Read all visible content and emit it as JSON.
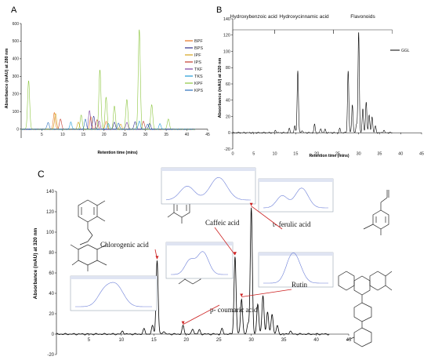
{
  "panels": {
    "a": "A",
    "b": "B",
    "c": "C"
  },
  "chart_data": [
    {
      "panel": "A",
      "type": "line",
      "xlabel": "Retention time (mins)",
      "ylabel": "Absorbance (mAU) at 280 nm",
      "xlim": [
        0,
        45
      ],
      "ylim": [
        -50,
        600
      ],
      "x_ticks": [
        5,
        10,
        15,
        20,
        25,
        30,
        35,
        40,
        45
      ],
      "y_ticks": [
        0,
        100,
        200,
        300,
        400,
        500,
        600
      ],
      "legend_position": "right",
      "series": [
        {
          "name": "BPF",
          "color": "#e6731e",
          "peaks": [
            [
              8.0,
              95
            ],
            [
              16.8,
              70
            ],
            [
              20.5,
              45
            ]
          ]
        },
        {
          "name": "BPS",
          "color": "#2e2e8a",
          "peaks": [
            [
              17.5,
              75
            ],
            [
              22.5,
              40
            ],
            [
              27.5,
              45
            ],
            [
              31.0,
              35
            ]
          ]
        },
        {
          "name": "IPF",
          "color": "#d4a21a",
          "peaks": [
            [
              8.3,
              90
            ],
            [
              13.8,
              40
            ],
            [
              24.0,
              30
            ]
          ]
        },
        {
          "name": "IPS",
          "color": "#c0392b",
          "peaks": [
            [
              9.5,
              60
            ],
            [
              18.3,
              55
            ],
            [
              29.5,
              45
            ]
          ]
        },
        {
          "name": "TKF",
          "color": "#7b3fa0",
          "peaks": [
            [
              16.5,
              105
            ],
            [
              18.8,
              45
            ],
            [
              25.5,
              40
            ]
          ]
        },
        {
          "name": "TKS",
          "color": "#1f9ad6",
          "peaks": [
            [
              12.0,
              40
            ],
            [
              21.0,
              35
            ],
            [
              28.5,
              45
            ],
            [
              33.5,
              30
            ]
          ]
        },
        {
          "name": "KPF",
          "color": "#8cc63f",
          "peaks": [
            [
              1.8,
              275
            ],
            [
              14.5,
              80
            ],
            [
              19.0,
              335
            ],
            [
              20.5,
              180
            ],
            [
              22.5,
              130
            ],
            [
              25.5,
              170
            ],
            [
              28.5,
              565
            ],
            [
              31.5,
              140
            ],
            [
              35.5,
              60
            ]
          ]
        },
        {
          "name": "KPS",
          "color": "#2c6fbb",
          "peaks": [
            [
              6.5,
              40
            ],
            [
              15.5,
              55
            ],
            [
              23.5,
              35
            ],
            [
              30.5,
              30
            ]
          ]
        }
      ]
    },
    {
      "panel": "B",
      "type": "line",
      "xlabel": "Retention time (mins)",
      "ylabel": "Absorbance (mAU) at 320 nm",
      "xlim": [
        0,
        45
      ],
      "ylim": [
        -20,
        140
      ],
      "x_ticks": [
        0,
        5,
        10,
        15,
        20,
        25,
        30,
        35,
        40,
        45
      ],
      "y_ticks": [
        -20,
        0,
        20,
        40,
        60,
        80,
        100,
        120,
        140
      ],
      "legend_position": "right",
      "regions": [
        {
          "label": "Hydroxybenzoic acid",
          "start": 0,
          "end": 10
        },
        {
          "label": "Hydroxycinnamic acid",
          "start": 10,
          "end": 24
        },
        {
          "label": "Flavonoids",
          "start": 24,
          "end": 38
        }
      ],
      "series": [
        {
          "name": "GGL",
          "color": "#000000",
          "peaks": [
            [
              10.2,
              3
            ],
            [
              13.5,
              5
            ],
            [
              14.8,
              8
            ],
            [
              15.5,
              76
            ],
            [
              16.5,
              3
            ],
            [
              19.5,
              10
            ],
            [
              21.0,
              5
            ],
            [
              22.0,
              4
            ],
            [
              25.5,
              5
            ],
            [
              27.5,
              76
            ],
            [
              28.5,
              35
            ],
            [
              29.5,
              10
            ],
            [
              30.0,
              124
            ],
            [
              31.0,
              30
            ],
            [
              31.8,
              38
            ],
            [
              32.5,
              22
            ],
            [
              33.2,
              20
            ],
            [
              34.0,
              8
            ],
            [
              36.0,
              3
            ]
          ]
        }
      ]
    },
    {
      "panel": "C",
      "type": "line",
      "ylabel": "Absorbance (mAU) at 320 nm",
      "xlim": [
        0,
        45
      ],
      "ylim": [
        -20,
        140
      ],
      "x_ticks": [
        5,
        10,
        15,
        20,
        25,
        30,
        35,
        40,
        45
      ],
      "y_ticks": [
        -20,
        0,
        20,
        40,
        60,
        80,
        100,
        120,
        140
      ],
      "series": [
        {
          "color": "#000000",
          "peaks": [
            [
              10.2,
              3
            ],
            [
              13.5,
              5
            ],
            [
              14.8,
              8
            ],
            [
              15.5,
              72
            ],
            [
              16.5,
              3
            ],
            [
              19.5,
              8
            ],
            [
              21.0,
              5
            ],
            [
              22.0,
              4
            ],
            [
              25.5,
              5
            ],
            [
              27.5,
              76
            ],
            [
              28.5,
              35
            ],
            [
              29.5,
              10
            ],
            [
              30.0,
              124
            ],
            [
              31.0,
              30
            ],
            [
              31.8,
              38
            ],
            [
              32.5,
              22
            ],
            [
              33.2,
              20
            ],
            [
              34.0,
              8
            ],
            [
              36.0,
              3
            ]
          ]
        }
      ],
      "annotations": [
        {
          "label": "Chlorogenic acid",
          "x": 15.5,
          "y": 72
        },
        {
          "label": "p- coumaric acid",
          "x": 19.5,
          "y": 8
        },
        {
          "label": "Caffeic acid",
          "x": 27.5,
          "y": 76
        },
        {
          "label": "t- ferulic acid",
          "x": 30.0,
          "y": 124
        },
        {
          "label": "Rutin",
          "x": 28.5,
          "y": 35
        }
      ]
    }
  ],
  "colors": {
    "axis": "#000000",
    "grid_tick": "#555555",
    "inset_border": "#9aa3b5",
    "inset_line": "#6c7fd8"
  }
}
